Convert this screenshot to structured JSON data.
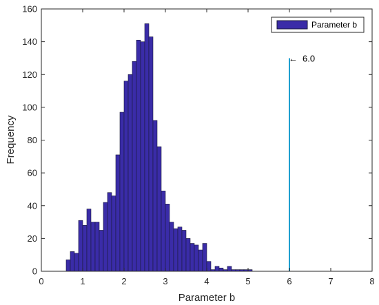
{
  "chart_data": {
    "type": "bar",
    "title": "",
    "xlabel": "Parameter b",
    "ylabel": "Frequency",
    "xlim": [
      0,
      8
    ],
    "ylim": [
      0,
      160
    ],
    "xticks": [
      0,
      1,
      2,
      3,
      4,
      5,
      6,
      7,
      8
    ],
    "yticks": [
      0,
      20,
      40,
      60,
      80,
      100,
      120,
      140,
      160
    ],
    "grid": false,
    "legend": {
      "position": "top-right",
      "entries": [
        "Parameter b"
      ]
    },
    "bar_color": "#3a2ca8",
    "bar_edge_color": "#1a1a3a",
    "bin_width": 0.1,
    "series": [
      {
        "name": "Parameter b",
        "bins": [
          {
            "x": 0.6,
            "y": 7
          },
          {
            "x": 0.7,
            "y": 12
          },
          {
            "x": 0.8,
            "y": 11
          },
          {
            "x": 0.9,
            "y": 31
          },
          {
            "x": 1.0,
            "y": 28
          },
          {
            "x": 1.1,
            "y": 38
          },
          {
            "x": 1.2,
            "y": 30
          },
          {
            "x": 1.3,
            "y": 30
          },
          {
            "x": 1.4,
            "y": 25
          },
          {
            "x": 1.5,
            "y": 42
          },
          {
            "x": 1.6,
            "y": 48
          },
          {
            "x": 1.7,
            "y": 46
          },
          {
            "x": 1.8,
            "y": 71
          },
          {
            "x": 1.9,
            "y": 97
          },
          {
            "x": 2.0,
            "y": 116
          },
          {
            "x": 2.1,
            "y": 120
          },
          {
            "x": 2.2,
            "y": 128
          },
          {
            "x": 2.3,
            "y": 141
          },
          {
            "x": 2.4,
            "y": 140
          },
          {
            "x": 2.5,
            "y": 151
          },
          {
            "x": 2.6,
            "y": 143
          },
          {
            "x": 2.7,
            "y": 92
          },
          {
            "x": 2.8,
            "y": 76
          },
          {
            "x": 2.9,
            "y": 49
          },
          {
            "x": 3.0,
            "y": 41
          },
          {
            "x": 3.1,
            "y": 30
          },
          {
            "x": 3.2,
            "y": 26
          },
          {
            "x": 3.3,
            "y": 27
          },
          {
            "x": 3.4,
            "y": 25
          },
          {
            "x": 3.5,
            "y": 20
          },
          {
            "x": 3.6,
            "y": 17
          },
          {
            "x": 3.7,
            "y": 16
          },
          {
            "x": 3.8,
            "y": 13
          },
          {
            "x": 3.9,
            "y": 17
          },
          {
            "x": 4.0,
            "y": 6
          },
          {
            "x": 4.1,
            "y": 1
          },
          {
            "x": 4.2,
            "y": 3
          },
          {
            "x": 4.3,
            "y": 2
          },
          {
            "x": 4.4,
            "y": 1
          },
          {
            "x": 4.5,
            "y": 3
          },
          {
            "x": 4.6,
            "y": 1
          },
          {
            "x": 4.7,
            "y": 1
          },
          {
            "x": 4.8,
            "y": 1
          },
          {
            "x": 4.9,
            "y": 1
          },
          {
            "x": 5.0,
            "y": 1
          }
        ]
      }
    ],
    "reference_line": {
      "x": 6.0,
      "y_top": 130,
      "color": "#1f9fd0"
    },
    "annotations": [
      {
        "text": "6.0",
        "x": 6.0,
        "y": 130,
        "arrow": "←"
      }
    ]
  }
}
